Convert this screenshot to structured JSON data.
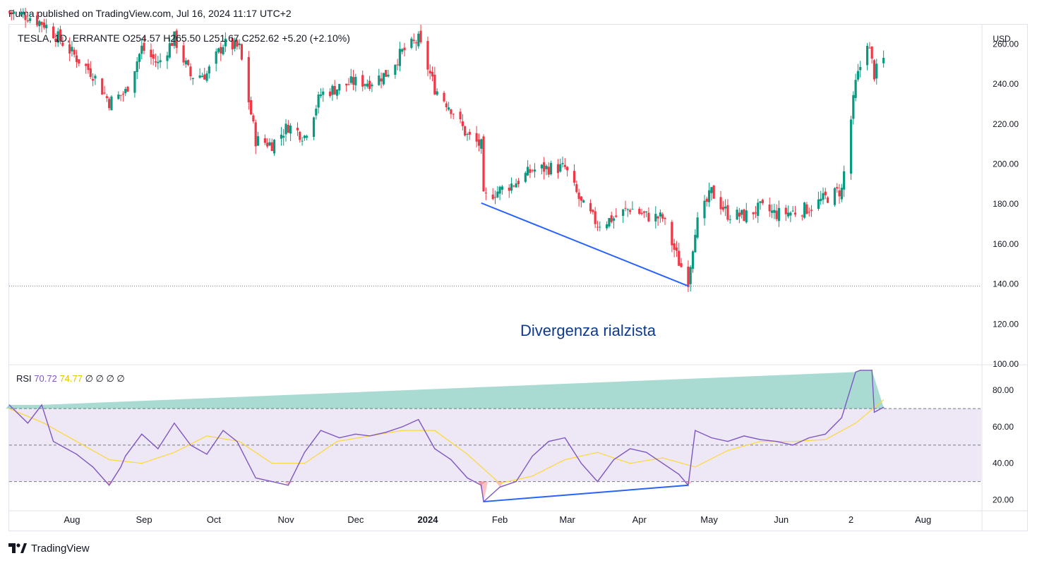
{
  "header": {
    "publisher_text": "Puma published on TradingView.com, Jul 16, 2024 11:17 UTC+2"
  },
  "footer": {
    "brand": "TradingView",
    "logo_icon": "tradingview-logo-icon"
  },
  "colors": {
    "up": "#089981",
    "down": "#f23645",
    "rsi_line": "#7e57c2",
    "rsi_ma": "#fdd835",
    "rsi_band": "#ede7f6",
    "trendline": "#2962ff",
    "annotation": "#0d3a8c"
  },
  "main_legend": {
    "symbol": "TESLA, 1D, ERRANTE",
    "open": "O254.57",
    "high": "H265.50",
    "low": "L251.67",
    "close": "C252.62",
    "change": "+5.20 (+2.10%)"
  },
  "rsi_legend": {
    "label": "RSI",
    "rsi_value": "70.72",
    "ma_value": "74.77",
    "extras": [
      "∅",
      "∅",
      "∅",
      "∅"
    ]
  },
  "annotation": {
    "text": "Divergenza rialzista"
  },
  "currency": "USD",
  "chart_data": [
    {
      "type": "candlestick",
      "title": "TESLA, 1D, ERRANTE",
      "ylim": [
        100,
        270
      ],
      "y_ticks": [
        "260.00",
        "240.00",
        "220.00",
        "200.00",
        "180.00",
        "160.00",
        "140.00",
        "120.00",
        "100.00"
      ],
      "x_ticks": [
        "Aug",
        "Sep",
        "Oct",
        "Nov",
        "Dec",
        "2024",
        "Feb",
        "Mar",
        "Apr",
        "May",
        "Jun",
        "2",
        "Aug"
      ],
      "x_range": [
        "2023-07-05",
        "2024-08-26"
      ],
      "reference_level": 139,
      "close_series": {
        "dates": [
          "2023-07-05",
          "2023-07-13",
          "2023-07-20",
          "2023-07-27",
          "2023-08-03",
          "2023-08-10",
          "2023-08-17",
          "2023-08-24",
          "2023-08-31",
          "2023-09-07",
          "2023-09-14",
          "2023-09-21",
          "2023-09-28",
          "2023-10-05",
          "2023-10-12",
          "2023-10-19",
          "2023-10-26",
          "2023-11-02",
          "2023-11-09",
          "2023-11-16",
          "2023-11-23",
          "2023-11-30",
          "2023-12-07",
          "2023-12-14",
          "2023-12-21",
          "2023-12-28",
          "2024-01-04",
          "2024-01-11",
          "2024-01-18",
          "2024-01-24",
          "2024-01-25",
          "2024-02-01",
          "2024-02-08",
          "2024-02-15",
          "2024-02-22",
          "2024-02-29",
          "2024-03-07",
          "2024-03-14",
          "2024-03-21",
          "2024-03-28",
          "2024-04-04",
          "2024-04-11",
          "2024-04-18",
          "2024-04-22",
          "2024-04-25",
          "2024-05-02",
          "2024-05-09",
          "2024-05-16",
          "2024-05-23",
          "2024-05-30",
          "2024-06-06",
          "2024-06-13",
          "2024-06-20",
          "2024-06-27",
          "2024-07-03",
          "2024-07-08",
          "2024-07-11",
          "2024-07-15"
        ],
        "values": [
          276,
          274,
          270,
          262,
          253,
          245,
          231,
          236,
          258,
          250,
          263,
          244,
          245,
          260,
          258,
          212,
          210,
          219,
          214,
          235,
          238,
          241,
          241,
          245,
          256,
          262,
          238,
          228,
          214,
          209,
          183,
          187,
          191,
          197,
          198,
          198,
          180,
          170,
          173,
          178,
          174,
          173,
          151,
          142,
          168,
          186,
          175,
          174,
          178,
          175,
          176,
          178,
          183,
          187,
          240,
          262,
          245,
          252
        ]
      },
      "annotations": {
        "trendline": {
          "from": [
            "2024-01-24",
            180.5
          ],
          "to": [
            "2024-04-22",
            139
          ]
        },
        "text": "Divergenza rialzista"
      }
    },
    {
      "type": "line",
      "title": "RSI",
      "ylim": [
        14,
        94
      ],
      "y_ticks": [
        "80.00",
        "60.00",
        "40.00",
        "20.00"
      ],
      "levels": [
        70,
        50,
        30
      ],
      "band": [
        30,
        70
      ],
      "series": [
        {
          "name": "RSI",
          "x": [
            "2023-07-05",
            "2023-07-13",
            "2023-07-19",
            "2023-07-24",
            "2023-08-03",
            "2023-08-10",
            "2023-08-17",
            "2023-08-22",
            "2023-08-24",
            "2023-08-31",
            "2023-09-07",
            "2023-09-14",
            "2023-09-21",
            "2023-09-28",
            "2023-10-05",
            "2023-10-11",
            "2023-10-19",
            "2023-10-26",
            "2023-11-02",
            "2023-11-09",
            "2023-11-16",
            "2023-11-24",
            "2023-12-01",
            "2023-12-07",
            "2023-12-14",
            "2023-12-21",
            "2023-12-28",
            "2024-01-04",
            "2024-01-11",
            "2024-01-18",
            "2024-01-24",
            "2024-01-25",
            "2024-02-01",
            "2024-02-08",
            "2024-02-15",
            "2024-02-22",
            "2024-02-29",
            "2024-03-07",
            "2024-03-14",
            "2024-03-21",
            "2024-03-28",
            "2024-04-04",
            "2024-04-11",
            "2024-04-18",
            "2024-04-22",
            "2024-04-25",
            "2024-05-02",
            "2024-05-09",
            "2024-05-16",
            "2024-05-23",
            "2024-05-30",
            "2024-06-06",
            "2024-06-13",
            "2024-06-20",
            "2024-06-27",
            "2024-07-03",
            "2024-07-05",
            "2024-07-10",
            "2024-07-11",
            "2024-07-15"
          ],
          "values": [
            72,
            62,
            72,
            52,
            45,
            38,
            28,
            38,
            44,
            56,
            48,
            62,
            50,
            45,
            58,
            52,
            32,
            30,
            28,
            46,
            58,
            54,
            56,
            55,
            57,
            60,
            64,
            48,
            42,
            32,
            28,
            19,
            27,
            30,
            44,
            52,
            54,
            40,
            30,
            42,
            48,
            46,
            40,
            34,
            28,
            58,
            54,
            52,
            55,
            53,
            52,
            50,
            54,
            56,
            65,
            90,
            91,
            91,
            68,
            70.72
          ]
        },
        {
          "name": "RSI-based MA",
          "x": [
            "2023-07-05",
            "2023-07-20",
            "2023-08-03",
            "2023-08-17",
            "2023-08-31",
            "2023-09-14",
            "2023-09-28",
            "2023-10-12",
            "2023-10-26",
            "2023-11-09",
            "2023-11-23",
            "2023-12-07",
            "2023-12-21",
            "2024-01-04",
            "2024-01-18",
            "2024-02-01",
            "2024-02-15",
            "2024-02-29",
            "2024-03-14",
            "2024-03-28",
            "2024-04-11",
            "2024-04-25",
            "2024-05-09",
            "2024-05-23",
            "2024-06-06",
            "2024-06-20",
            "2024-07-03",
            "2024-07-15"
          ],
          "values": [
            70,
            62,
            52,
            42,
            40,
            46,
            55,
            52,
            40,
            40,
            52,
            55,
            58,
            58,
            45,
            29,
            33,
            42,
            46,
            40,
            43,
            38,
            47,
            52,
            52,
            53,
            62,
            74.77
          ]
        }
      ]
    }
  ]
}
